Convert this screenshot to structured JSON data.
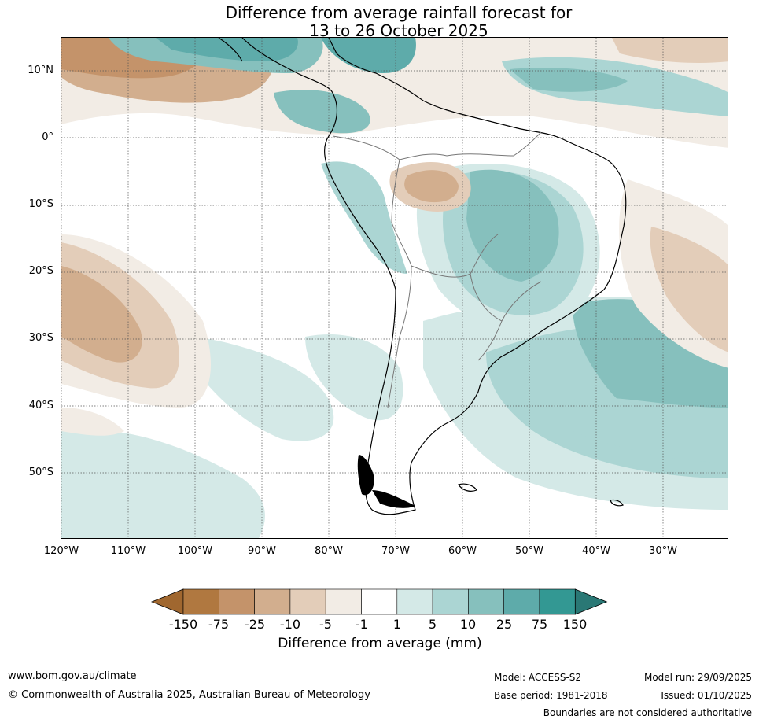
{
  "title": {
    "line1": "Difference from average rainfall forecast for",
    "line2": "13 to 26 October 2025"
  },
  "map": {
    "region": "South America",
    "lat_labels": [
      "10°N",
      "0°",
      "10°S",
      "20°S",
      "30°S",
      "40°S",
      "50°S"
    ],
    "lon_labels": [
      "120°W",
      "110°W",
      "100°W",
      "90°W",
      "80°W",
      "70°W",
      "60°W",
      "50°W",
      "40°W",
      "30°W"
    ]
  },
  "legend": {
    "title": "Difference from average (mm)",
    "ticks": [
      "-150",
      "-75",
      "-25",
      "-10",
      "-5",
      "-1",
      "1",
      "5",
      "10",
      "25",
      "75",
      "150"
    ],
    "colors": [
      "#a0672f",
      "#b07840",
      "#c4936a",
      "#d2ae8e",
      "#e3cdb9",
      "#f2ece5",
      "#ffffff",
      "#d4e9e7",
      "#abd5d3",
      "#86c0bd",
      "#5eabaa",
      "#339893",
      "#2a7875"
    ]
  },
  "footer": {
    "website": "www.bom.gov.au/climate",
    "copyright": "© Commonwealth of Australia 2025, Australian Bureau of Meteorology",
    "model": "Model: ACCESS-S2",
    "base_period": "Base period: 1981-2018",
    "model_run": "Model run: 29/09/2025",
    "issued": "Issued: 01/10/2025",
    "disclaimer": "Boundaries are not considered authoritative"
  }
}
